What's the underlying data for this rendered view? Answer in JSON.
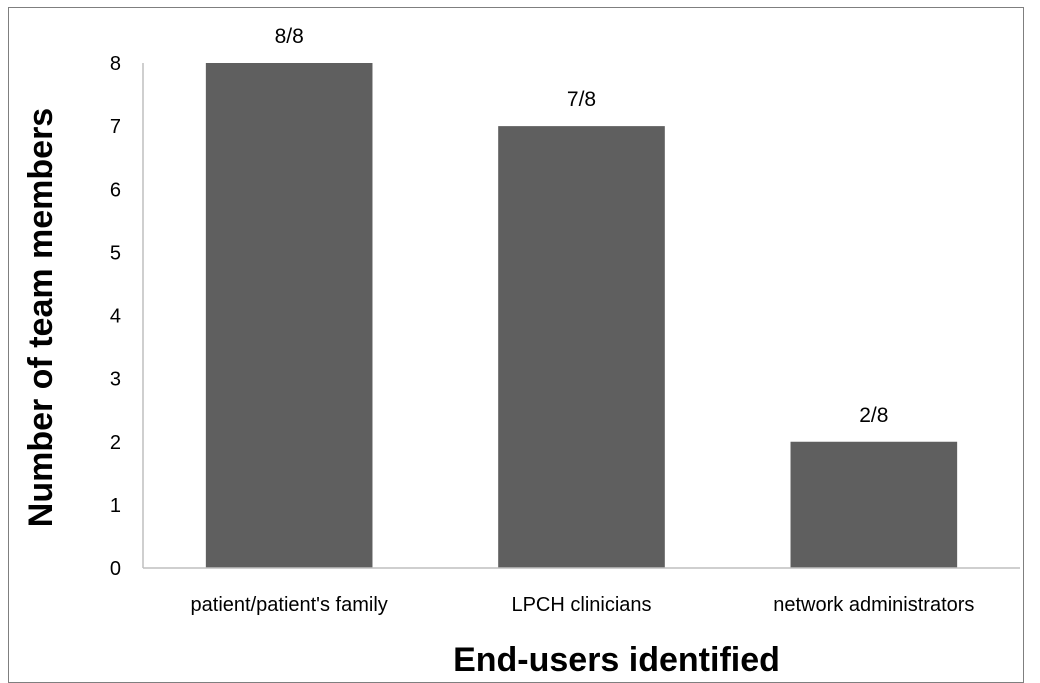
{
  "chart_data": {
    "type": "bar",
    "categories": [
      "patient/patient's family",
      "LPCH clinicians",
      "network administrators"
    ],
    "values": [
      8,
      7,
      2
    ],
    "data_labels": [
      "8/8",
      "7/8",
      "2/8"
    ],
    "xlabel": "End-users identified",
    "ylabel": "Number of team members",
    "ylim": [
      0,
      8
    ],
    "yticks": [
      0,
      1,
      2,
      3,
      4,
      5,
      6,
      7,
      8
    ],
    "grid": false,
    "bar_color": "#5f5f5f",
    "axis_color": "#bfbfbf"
  }
}
